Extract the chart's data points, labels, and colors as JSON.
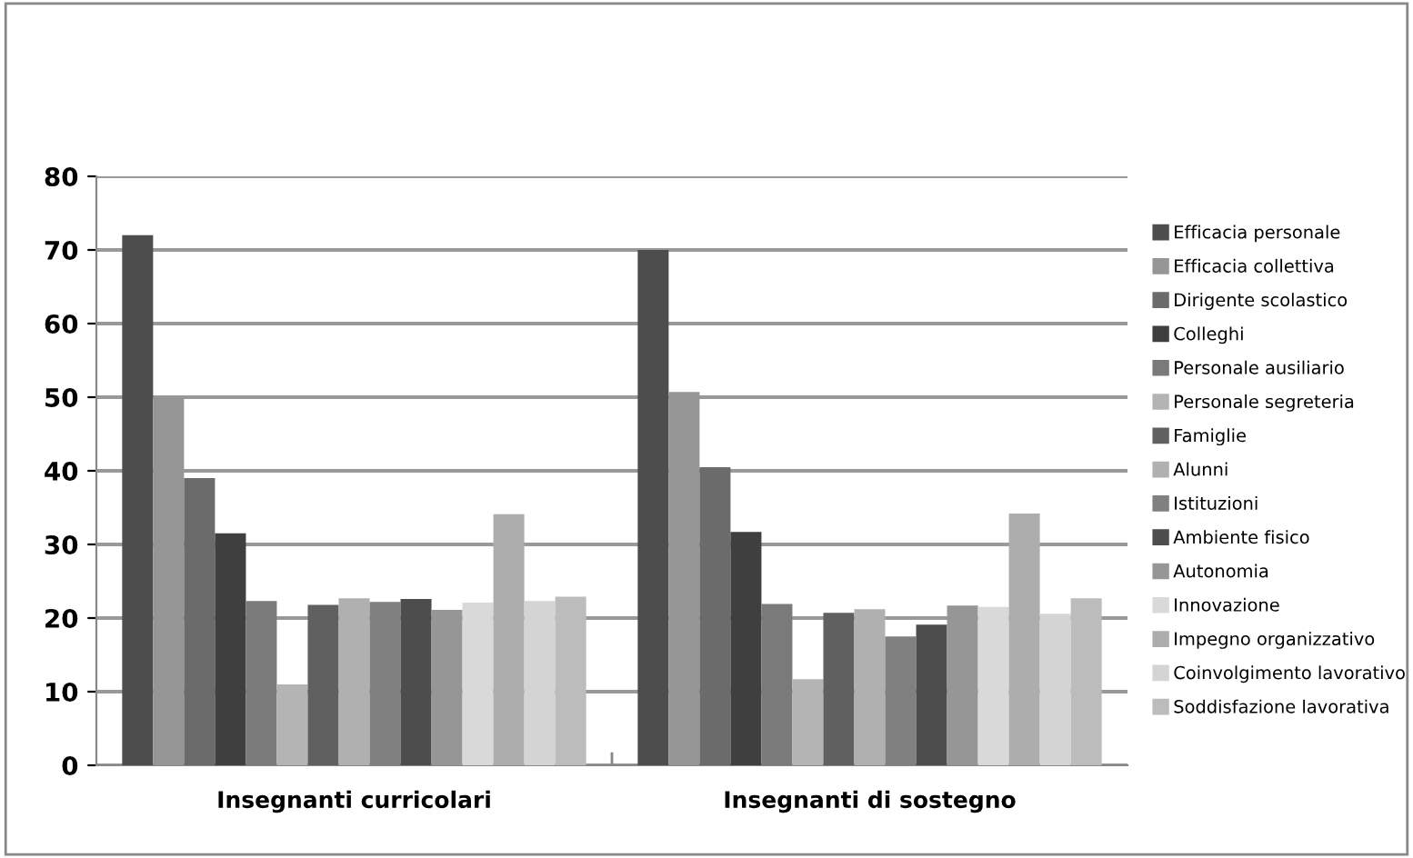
{
  "chart_data": {
    "type": "bar",
    "categories": [
      "Insegnanti curricolari",
      "Insegnanti di sostegno"
    ],
    "series": [
      {
        "name": "Efficacia personale",
        "color": "#4d4d4d",
        "values": [
          72,
          70
        ]
      },
      {
        "name": "Efficacia collettiva",
        "color": "#969696",
        "values": [
          50,
          50.7
        ]
      },
      {
        "name": "Dirigente scolastico",
        "color": "#6b6b6b",
        "values": [
          39,
          40.5
        ]
      },
      {
        "name": "Colleghi",
        "color": "#3f3f3f",
        "values": [
          31.5,
          31.7
        ]
      },
      {
        "name": "Personale ausiliario",
        "color": "#7a7a7a",
        "values": [
          22.3,
          21.9
        ]
      },
      {
        "name": "Personale segreteria",
        "color": "#b4b4b4",
        "values": [
          11,
          11.7
        ]
      },
      {
        "name": "Famiglie",
        "color": "#606060",
        "values": [
          21.8,
          20.7
        ]
      },
      {
        "name": "Alunni",
        "color": "#b0b0b0",
        "values": [
          22.7,
          21.2
        ]
      },
      {
        "name": "Istituzioni",
        "color": "#808080",
        "values": [
          22.2,
          17.5
        ]
      },
      {
        "name": "Ambiente fisico",
        "color": "#4d4d4d",
        "values": [
          22.6,
          19.1
        ]
      },
      {
        "name": "Autonomia",
        "color": "#969696",
        "values": [
          21.1,
          21.7
        ]
      },
      {
        "name": "Innovazione",
        "color": "#d9d9d9",
        "values": [
          22.1,
          21.5
        ]
      },
      {
        "name": "Impegno organizzativo",
        "color": "#adadad",
        "values": [
          34.1,
          34.2
        ]
      },
      {
        "name": "Coinvolgimento lavorativo",
        "color": "#d4d4d4",
        "values": [
          22.3,
          20.6
        ]
      },
      {
        "name": "Soddisfazione lavorativa",
        "color": "#bcbcbc",
        "values": [
          22.9,
          22.7
        ]
      }
    ],
    "ylim": [
      0,
      80
    ],
    "yticks": [
      0,
      10,
      20,
      30,
      40,
      50,
      60,
      70,
      80
    ],
    "grid": "y",
    "legend": "right"
  }
}
